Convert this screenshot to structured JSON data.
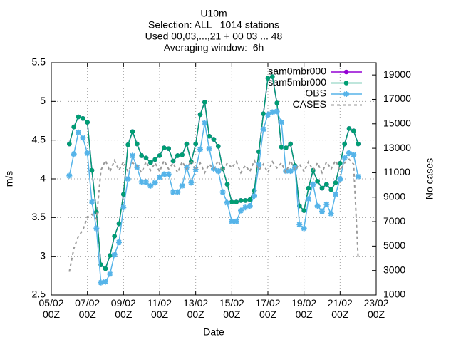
{
  "chart_data": {
    "type": "line",
    "title": "U10m",
    "subtitle": [
      "Selection: ALL   1014 stations",
      "Used 00,03,...,21 + 00 03 ... 48",
      "Averaging window:  6h"
    ],
    "xlabel": "Date",
    "ylabel": "m/s",
    "y2label": "No cases",
    "x": [
      6,
      6.25,
      6.5,
      6.75,
      7,
      7.25,
      7.5,
      7.75,
      8,
      8.25,
      8.5,
      8.75,
      9,
      9.25,
      9.5,
      9.75,
      10,
      10.25,
      10.5,
      10.75,
      11,
      11.25,
      11.5,
      11.75,
      12,
      12.25,
      12.5,
      12.75,
      13,
      13.25,
      13.5,
      13.75,
      14,
      14.25,
      14.5,
      14.75,
      15,
      15.25,
      15.5,
      15.75,
      16,
      16.25,
      16.5,
      16.75,
      17,
      17.25,
      17.5,
      17.75,
      18,
      18.25,
      18.5,
      18.75,
      19,
      19.25,
      19.5,
      19.75,
      20,
      20.25,
      20.5,
      20.75,
      21,
      21.25,
      21.5,
      21.75,
      22
    ],
    "xlim": [
      5,
      23
    ],
    "xticks": [
      {
        "value": 5,
        "label": "05/02\n00Z"
      },
      {
        "value": 7,
        "label": "07/02\n00Z"
      },
      {
        "value": 9,
        "label": "09/02\n00Z"
      },
      {
        "value": 11,
        "label": "11/02\n00Z"
      },
      {
        "value": 13,
        "label": "13/02\n00Z"
      },
      {
        "value": 15,
        "label": "15/02\n00Z"
      },
      {
        "value": 17,
        "label": "17/02\n00Z"
      },
      {
        "value": 19,
        "label": "19/02\n00Z"
      },
      {
        "value": 21,
        "label": "21/02\n00Z"
      },
      {
        "value": 23,
        "label": "23/02\n00Z"
      }
    ],
    "ylim": [
      2.5,
      5.5
    ],
    "yticks": [
      2.5,
      3,
      3.5,
      4,
      4.5,
      5,
      5.5
    ],
    "y2lim": [
      1000,
      20000
    ],
    "y2ticks": [
      1000,
      3000,
      5000,
      7000,
      9000,
      11000,
      13000,
      15000,
      17000,
      19000
    ],
    "grid": true,
    "legend": "top-right",
    "series": [
      {
        "name": "sam0mbr000",
        "color": "#9400d3",
        "marker": "circle",
        "values": [
          4.45,
          4.67,
          4.8,
          4.78,
          4.73,
          4.11,
          3.57,
          2.89,
          2.84,
          3.01,
          3.26,
          3.42,
          3.8,
          4.44,
          4.61,
          4.45,
          4.3,
          4.27,
          4.21,
          4.25,
          4.3,
          4.4,
          4.39,
          4.23,
          4.3,
          4.31,
          4.45,
          4.22,
          4.45,
          4.83,
          4.99,
          4.55,
          4.51,
          4.42,
          4.13,
          3.93,
          3.7,
          3.7,
          3.72,
          3.72,
          3.73,
          3.85,
          4.35,
          4.84,
          5.3,
          5.32,
          4.98,
          4.41,
          4.4,
          4.45,
          4.17,
          3.65,
          3.59,
          3.88,
          4.11,
          3.97,
          3.88,
          3.93,
          3.86,
          3.95,
          4.2,
          4.45,
          4.65,
          4.62,
          4.45
        ]
      },
      {
        "name": "sam5mbr000",
        "color": "#009e73",
        "marker": "circle",
        "values": [
          4.45,
          4.67,
          4.8,
          4.78,
          4.73,
          4.11,
          3.57,
          2.89,
          2.84,
          3.01,
          3.26,
          3.42,
          3.8,
          4.44,
          4.61,
          4.45,
          4.3,
          4.27,
          4.21,
          4.25,
          4.3,
          4.4,
          4.39,
          4.23,
          4.3,
          4.31,
          4.45,
          4.22,
          4.45,
          4.83,
          4.99,
          4.55,
          4.51,
          4.42,
          4.13,
          3.93,
          3.7,
          3.7,
          3.72,
          3.72,
          3.73,
          3.85,
          4.35,
          4.84,
          5.3,
          5.32,
          4.98,
          4.41,
          4.4,
          4.45,
          4.17,
          3.65,
          3.59,
          3.88,
          4.11,
          3.97,
          3.88,
          3.93,
          3.86,
          3.95,
          4.2,
          4.45,
          4.65,
          4.62,
          4.45
        ]
      },
      {
        "name": "OBS",
        "color": "#56b4e9",
        "marker": "star",
        "values": [
          4.04,
          4.32,
          4.6,
          4.53,
          4.33,
          3.7,
          3.36,
          2.66,
          2.67,
          2.77,
          3.02,
          3.18,
          3.63,
          4.0,
          4.3,
          4.15,
          3.96,
          3.96,
          3.91,
          3.95,
          4.02,
          4.06,
          4.06,
          3.83,
          3.83,
          3.91,
          4.15,
          3.95,
          4.12,
          4.38,
          4.72,
          4.39,
          4.13,
          4.1,
          3.83,
          3.69,
          3.45,
          3.45,
          3.59,
          3.63,
          3.65,
          3.78,
          4.18,
          4.64,
          4.83,
          4.86,
          4.87,
          4.73,
          4.1,
          4.1,
          4.14,
          3.41,
          3.36,
          3.74,
          3.93,
          3.65,
          3.58,
          3.67,
          3.55,
          3.8,
          4.0,
          4.27,
          4.33,
          4.31,
          4.03
        ]
      },
      {
        "name": "CASES",
        "color": "#999999",
        "marker": "none",
        "dash": true,
        "axis": "y2",
        "values": [
          2900,
          4800,
          5800,
          6300,
          7400,
          7600,
          7200,
          11200,
          12000,
          11100,
          12000,
          11200,
          11900,
          11100,
          11800,
          11600,
          11000,
          11900,
          11200,
          11800,
          11100,
          12000,
          11300,
          11800,
          11000,
          11900,
          11300,
          12000,
          11200,
          11800,
          11000,
          11700,
          11300,
          12000,
          11100,
          11800,
          11400,
          11900,
          11000,
          11600,
          11100,
          12000,
          11200,
          11700,
          11000,
          11900,
          11400,
          11800,
          11000,
          12000,
          11200,
          11700,
          11100,
          11900,
          11200,
          11800,
          11000,
          11900,
          11300,
          12000,
          11200,
          11800,
          12100,
          11700,
          4000
        ]
      }
    ]
  }
}
